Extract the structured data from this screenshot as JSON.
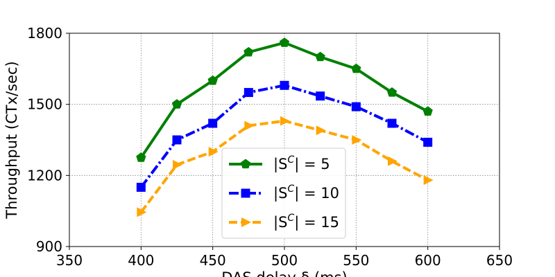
{
  "chart_data": {
    "type": "line",
    "title": "",
    "xlabel": "DAS delay δ (ms)",
    "ylabel": "Throughput (CTx/sec)",
    "xlim": [
      350,
      650
    ],
    "ylim": [
      900,
      1800
    ],
    "x_ticks": [
      "350",
      "400",
      "450",
      "500",
      "550",
      "600",
      "650"
    ],
    "y_ticks": [
      "900",
      "1200",
      "1500",
      "1800"
    ],
    "grid": true,
    "legend_position": "lower-center",
    "x": [
      400,
      425,
      450,
      475,
      500,
      525,
      550,
      575,
      600
    ],
    "series": [
      {
        "name": "|S^C| = 5",
        "legend_base": "|S",
        "legend_sup": "C",
        "legend_rest": "| = 5",
        "color": "#008000",
        "marker": "pentagon",
        "linestyle": "solid",
        "values": [
          1275,
          1500,
          1600,
          1720,
          1760,
          1700,
          1650,
          1550,
          1470
        ]
      },
      {
        "name": "|S^C| = 10",
        "legend_base": "|S",
        "legend_sup": "C",
        "legend_rest": "| = 10",
        "color": "#0000ff",
        "marker": "square",
        "linestyle": "dashdot",
        "values": [
          1150,
          1350,
          1420,
          1550,
          1580,
          1535,
          1490,
          1420,
          1340
        ]
      },
      {
        "name": "|S^C| = 15",
        "legend_base": "|S",
        "legend_sup": "C",
        "legend_rest": "| = 15",
        "color": "#ffa500",
        "marker": "triangle-right",
        "linestyle": "dashed",
        "values": [
          1045,
          1245,
          1300,
          1410,
          1430,
          1390,
          1350,
          1260,
          1180
        ]
      }
    ]
  }
}
